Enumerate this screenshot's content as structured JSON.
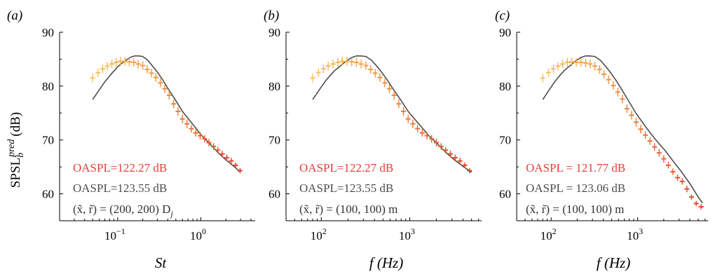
{
  "figure": {
    "ylabel_main": "SPSL",
    "ylabel_sub": "b",
    "ylabel_sup": "pred",
    "ylabel_unit": "(dB)",
    "colors": {
      "axis": "#000000",
      "reference_line": "#4d4d4d",
      "light_points": "#f7c35c",
      "mid_points": "#f08a3c",
      "dark_points": "#e63a26",
      "oaspl_pred_text": "#e2403a",
      "oaspl_ref_text": "#4d4d4d"
    }
  },
  "chart_data": [
    {
      "panel_label": "(a)",
      "type": "line",
      "x_scale": "log",
      "xlabel": "St",
      "xticks": [
        "10",
        "10"
      ],
      "xtick_exponents": [
        "−1",
        "0"
      ],
      "xlim": [
        0.02,
        4.5
      ],
      "ylim": [
        55,
        90
      ],
      "yticks": [
        "60",
        "70",
        "80",
        "90"
      ],
      "annotations": {
        "oaspl_pred": "OASPL=122.27 dB",
        "oaspl_ref": "OASPL=123.55 dB",
        "position": "(x̃, r̃) = (200, 200) D",
        "position_sub": "j"
      },
      "series": [
        {
          "role": "reference",
          "x": [
            0.05,
            0.06,
            0.07,
            0.08,
            0.09,
            0.1,
            0.12,
            0.14,
            0.16,
            0.18,
            0.2,
            0.23,
            0.26,
            0.3,
            0.35,
            0.4,
            0.5,
            0.6,
            0.8,
            1.0,
            1.3,
            1.6,
            2.0,
            2.5,
            3.0
          ],
          "values": [
            77.5,
            79.3,
            80.8,
            81.9,
            82.8,
            83.6,
            84.6,
            85.3,
            85.6,
            85.6,
            85.5,
            84.8,
            83.8,
            82.6,
            81.1,
            79.6,
            77.3,
            75.3,
            72.9,
            71.0,
            69.2,
            67.7,
            66.3,
            65.1,
            64.0
          ]
        },
        {
          "role": "prediction",
          "x": [
            0.05,
            0.058,
            0.066,
            0.075,
            0.085,
            0.096,
            0.108,
            0.122,
            0.138,
            0.156,
            0.176,
            0.2,
            0.226,
            0.255,
            0.288,
            0.326,
            0.368,
            0.416,
            0.47,
            0.531,
            0.6,
            0.68,
            0.77,
            0.87,
            0.98,
            1.11,
            1.25,
            1.42,
            1.6,
            1.81,
            2.05,
            2.32,
            2.62,
            2.96
          ],
          "values": [
            81.5,
            82.5,
            83.2,
            83.7,
            84.1,
            84.4,
            84.6,
            84.6,
            84.5,
            84.4,
            84.1,
            83.8,
            83.1,
            82.4,
            81.6,
            80.6,
            79.5,
            78.3,
            76.7,
            75.3,
            73.9,
            73.0,
            72.1,
            71.3,
            70.8,
            70.2,
            69.5,
            68.8,
            68.1,
            67.4,
            66.7,
            66.1,
            65.3,
            64.3
          ],
          "error": [
            0.8,
            0.8,
            0.8,
            0.8,
            0.8,
            0.8,
            0.8,
            0.8,
            0.8,
            0.8,
            0.8,
            0.8,
            0.8,
            0.8,
            0.8,
            0.8,
            0.8,
            0.8,
            0.8,
            0.8,
            0.8,
            0.8,
            0.7,
            0.7,
            0.7,
            0.7,
            0.7,
            0.6,
            0.6,
            0.6,
            0.6,
            0.6,
            0.5,
            0.5
          ]
        }
      ]
    },
    {
      "panel_label": "(b)",
      "type": "line",
      "x_scale": "log",
      "xlabel": "f (Hz)",
      "xticks": [
        "10",
        "10"
      ],
      "xtick_exponents": [
        "2",
        "3"
      ],
      "xlim": [
        40,
        6500
      ],
      "ylim": [
        55,
        90
      ],
      "yticks": [
        "60",
        "70",
        "80",
        "90"
      ],
      "annotations": {
        "oaspl_pred": "OASPL=122.27 dB",
        "oaspl_ref": "OASPL=123.55 dB",
        "position": "(x̃, r̃) = (100, 100) m",
        "position_sub": ""
      },
      "series": [
        {
          "role": "reference",
          "x": [
            80,
            95,
            110,
            125,
            140,
            160,
            190,
            220,
            250,
            280,
            320,
            370,
            420,
            480,
            560,
            640,
            800,
            960,
            1280,
            1600,
            2080,
            2560,
            3200,
            4000,
            5000
          ],
          "values": [
            77.5,
            79.3,
            80.8,
            81.9,
            82.8,
            83.6,
            84.6,
            85.3,
            85.6,
            85.6,
            85.5,
            84.8,
            83.8,
            82.6,
            81.1,
            79.6,
            77.3,
            75.3,
            72.9,
            71.0,
            69.2,
            67.7,
            66.3,
            65.1,
            64.0
          ]
        },
        {
          "role": "prediction",
          "x": [
            80,
            93,
            106,
            120,
            136,
            154,
            173,
            195,
            221,
            250,
            282,
            320,
            362,
            408,
            461,
            522,
            589,
            666,
            752,
            850,
            960,
            1085,
            1226,
            1386,
            1566,
            1770,
            2000,
            2260,
            2550,
            2890,
            3270,
            3700,
            4190,
            4740
          ],
          "values": [
            81.5,
            82.5,
            83.2,
            83.7,
            84.1,
            84.4,
            84.6,
            84.6,
            84.5,
            84.4,
            84.1,
            83.8,
            83.1,
            82.4,
            81.6,
            80.6,
            79.5,
            78.3,
            76.7,
            75.3,
            73.9,
            73.0,
            72.1,
            71.3,
            70.8,
            70.2,
            69.5,
            68.8,
            68.1,
            67.4,
            66.7,
            66.1,
            65.3,
            64.3
          ],
          "error": [
            0.8,
            0.8,
            0.8,
            0.8,
            0.8,
            0.8,
            0.8,
            0.8,
            0.8,
            0.8,
            0.8,
            0.8,
            0.8,
            0.8,
            0.8,
            0.8,
            0.8,
            0.8,
            0.8,
            0.8,
            0.8,
            0.8,
            0.7,
            0.7,
            0.7,
            0.7,
            0.7,
            0.6,
            0.6,
            0.6,
            0.6,
            0.6,
            0.5,
            0.5
          ]
        }
      ]
    },
    {
      "panel_label": "(c)",
      "type": "line",
      "x_scale": "log",
      "xlabel": "f (Hz)",
      "xticks": [
        "10",
        "10"
      ],
      "xtick_exponents": [
        "2",
        "3"
      ],
      "xlim": [
        40,
        6500
      ],
      "ylim": [
        55,
        90
      ],
      "yticks": [
        "60",
        "70",
        "80",
        "90"
      ],
      "annotations": {
        "oaspl_pred": "OASPL = 121.77 dB",
        "oaspl_ref": "OASPL = 123.06 dB",
        "position": "(x̃, r̃) = (100, 100) m",
        "position_sub": ""
      },
      "series": [
        {
          "role": "reference",
          "x": [
            80,
            95,
            110,
            125,
            140,
            160,
            190,
            220,
            250,
            280,
            320,
            370,
            420,
            480,
            560,
            640,
            800,
            960,
            1280,
            1600,
            2080,
            2560,
            3200,
            4000,
            5000,
            5600
          ],
          "values": [
            77.5,
            79.3,
            80.8,
            81.9,
            82.8,
            83.6,
            84.6,
            85.3,
            85.6,
            85.6,
            85.5,
            84.8,
            83.8,
            82.6,
            81.1,
            79.6,
            77.0,
            74.9,
            72.1,
            70.1,
            68.0,
            66.1,
            64.1,
            61.9,
            59.4,
            58.3
          ]
        },
        {
          "role": "prediction",
          "x": [
            80,
            93,
            106,
            120,
            136,
            154,
            173,
            195,
            221,
            250,
            282,
            320,
            362,
            408,
            461,
            522,
            589,
            666,
            752,
            850,
            960,
            1085,
            1226,
            1386,
            1566,
            1770,
            2000,
            2260,
            2550,
            2890,
            3270,
            3700,
            4190,
            4740,
            5400
          ],
          "values": [
            81.5,
            82.5,
            83.2,
            83.7,
            84.1,
            84.4,
            84.5,
            84.4,
            84.4,
            84.3,
            84.1,
            83.7,
            83.1,
            82.2,
            81.2,
            80.1,
            78.9,
            77.6,
            75.8,
            74.6,
            73.3,
            72.0,
            70.9,
            69.8,
            68.7,
            67.6,
            66.5,
            65.3,
            64.1,
            63.0,
            62.3,
            60.9,
            59.4,
            58.2,
            57.6
          ],
          "error": [
            0.8,
            0.8,
            0.8,
            0.8,
            0.8,
            0.8,
            0.8,
            0.8,
            0.8,
            0.8,
            0.8,
            0.8,
            0.8,
            0.8,
            0.8,
            0.8,
            0.8,
            0.8,
            0.8,
            0.8,
            0.8,
            0.8,
            0.7,
            0.7,
            0.7,
            0.7,
            0.7,
            0.6,
            0.6,
            0.6,
            0.6,
            0.6,
            0.5,
            0.5,
            0.5
          ]
        }
      ]
    }
  ]
}
